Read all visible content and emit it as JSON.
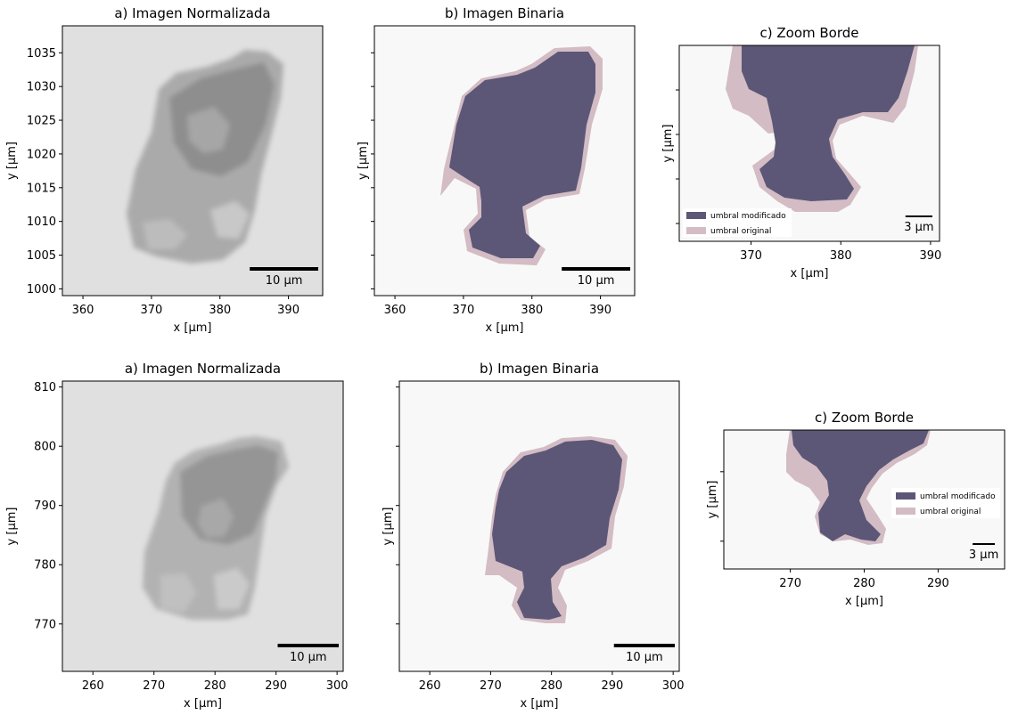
{
  "colors": {
    "modified": "#5c5777",
    "original": "#d3bcc4",
    "background": "#f8f8f8"
  },
  "chart_data": [
    {
      "id": "top-normalizada",
      "type": "heatmap",
      "title": "a) Imagen Normalizada",
      "xlabel": "x [µm]",
      "ylabel": "y [µm]",
      "xlim": [
        357,
        395
      ],
      "ylim": [
        999,
        1039
      ],
      "xticks": [
        360,
        370,
        380,
        390
      ],
      "xtick_labels": [
        "360",
        "370",
        "380",
        "390"
      ],
      "yticks": [
        1000,
        1005,
        1010,
        1015,
        1020,
        1025,
        1030,
        1035
      ],
      "ytick_labels": [
        "1000",
        "1005",
        "1010",
        "1015",
        "1020",
        "1025",
        "1030",
        "1035"
      ],
      "scalebar": {
        "length": 10,
        "label": "10 µm"
      }
    },
    {
      "id": "top-binaria",
      "type": "heatmap",
      "title": "b) Imagen Binaria",
      "xlabel": "x [µm]",
      "ylabel": "y [µm]",
      "xlim": [
        357,
        395
      ],
      "ylim": [
        999,
        1039
      ],
      "xticks": [
        360,
        370,
        380,
        390
      ],
      "xtick_labels": [
        "360",
        "370",
        "380",
        "390"
      ],
      "yticks": [
        1000,
        1005,
        1010,
        1015,
        1020,
        1025,
        1030,
        1035
      ],
      "ytick_labels": [],
      "scalebar": {
        "length": 10,
        "label": "10 µm"
      }
    },
    {
      "id": "top-zoom",
      "type": "heatmap",
      "title": "c) Zoom Borde",
      "xlabel": "x [µm]",
      "ylabel": "y [µm]",
      "xlim": [
        362,
        391
      ],
      "ylim": [
        1008,
        1030
      ],
      "xticks": [
        370,
        380,
        390
      ],
      "xtick_labels": [
        "370",
        "380",
        "390"
      ],
      "yticks": [
        1010,
        1015,
        1020,
        1025
      ],
      "ytick_labels": [],
      "legend": [
        "umbral modificado",
        "umbral original"
      ],
      "legend_position": "lower-left",
      "scalebar": {
        "length": 3,
        "label": "3 µm"
      }
    },
    {
      "id": "bottom-normalizada",
      "type": "heatmap",
      "title": "a) Imagen Normalizada",
      "xlabel": "x [µm]",
      "ylabel": "y [µm]",
      "xlim": [
        255,
        301
      ],
      "ylim": [
        762,
        811
      ],
      "xticks": [
        260,
        270,
        280,
        290,
        300
      ],
      "xtick_labels": [
        "260",
        "270",
        "280",
        "290",
        "300"
      ],
      "yticks": [
        770,
        780,
        790,
        800,
        810
      ],
      "ytick_labels": [
        "770",
        "780",
        "790",
        "800",
        "810"
      ],
      "scalebar": {
        "length": 10,
        "label": "10 µm"
      }
    },
    {
      "id": "bottom-binaria",
      "type": "heatmap",
      "title": "b) Imagen Binaria",
      "xlabel": "x [µm]",
      "ylabel": "y [µm]",
      "xlim": [
        255,
        301
      ],
      "ylim": [
        762,
        811
      ],
      "xticks": [
        260,
        270,
        280,
        290,
        300
      ],
      "xtick_labels": [
        "260",
        "270",
        "280",
        "290",
        "300"
      ],
      "yticks": [
        770,
        780,
        790,
        800,
        810
      ],
      "ytick_labels": [],
      "scalebar": {
        "length": 10,
        "label": "10 µm"
      }
    },
    {
      "id": "bottom-zoom",
      "type": "heatmap",
      "title": "c) Zoom Borde",
      "xlabel": "x [µm]",
      "ylabel": "y [µm]",
      "xlim": [
        261,
        299
      ],
      "ylim": [
        776,
        796
      ],
      "xticks": [
        270,
        280,
        290
      ],
      "xtick_labels": [
        "270",
        "280",
        "290"
      ],
      "yticks": [
        780,
        790
      ],
      "ytick_labels": [],
      "legend": [
        "umbral modificado",
        "umbral original"
      ],
      "legend_position": "center-right",
      "scalebar": {
        "length": 3,
        "label": "3 µm"
      }
    }
  ]
}
